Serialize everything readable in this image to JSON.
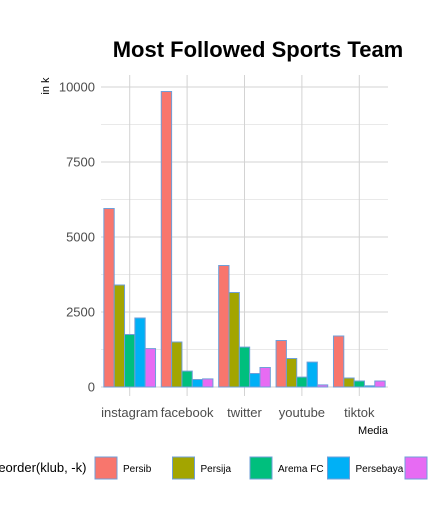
{
  "chart_data": {
    "type": "bar",
    "title": "Most Followed Sports Team",
    "xlabel": "Media",
    "ylabel": "in k",
    "categories": [
      "instagram",
      "facebook",
      "twitter",
      "youtube",
      "tiktok"
    ],
    "ylim": [
      0,
      10300
    ],
    "yticks": [
      0,
      2500,
      5000,
      7500,
      10000
    ],
    "grid": true,
    "legend": {
      "title": "reorder(klub, -k)",
      "placement": "bottom"
    },
    "series": [
      {
        "name": "Persib",
        "color": "#F8766D",
        "values": [
          5950,
          9850,
          4050,
          1550,
          1700
        ]
      },
      {
        "name": "Persija",
        "color": "#A3A500",
        "values": [
          3400,
          1500,
          3150,
          950,
          300
        ]
      },
      {
        "name": "Arema FC",
        "color": "#00BF7D",
        "values": [
          1750,
          530,
          1330,
          330,
          200
        ]
      },
      {
        "name": "Persebaya",
        "color": "#00B0F6",
        "values": [
          2300,
          250,
          450,
          830,
          40
        ]
      },
      {
        "name": "",
        "color": "#E76BF3",
        "values": [
          1280,
          270,
          650,
          70,
          200
        ]
      }
    ]
  },
  "colors": {
    "bar_outline": "#6f9fd8",
    "grid": "#d3d3d3"
  }
}
